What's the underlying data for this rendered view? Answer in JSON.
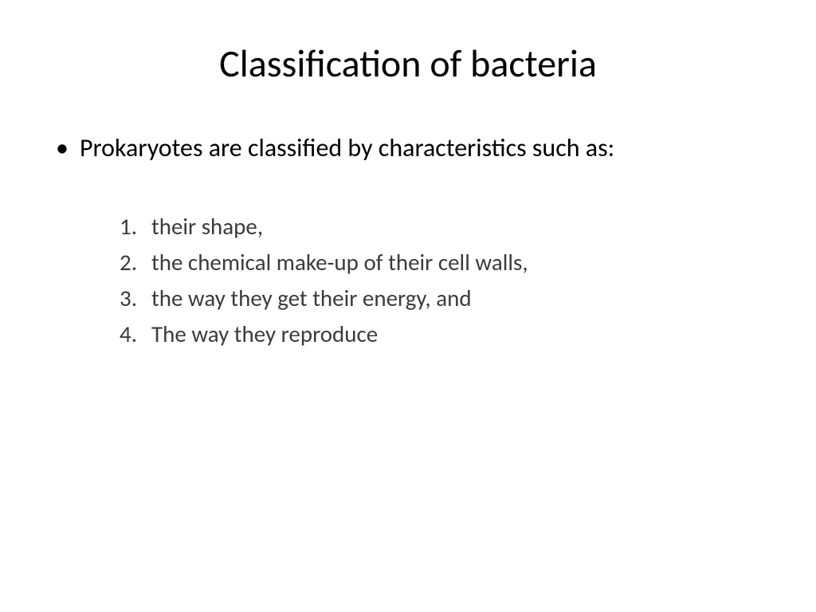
{
  "slide": {
    "title": "Classification of bacteria",
    "intro": "Prokaryotes are classified by characteristics such as:",
    "items": [
      {
        "num": "1.",
        "text": "their shape,"
      },
      {
        "num": "2.",
        "text": "the chemical make-up of their cell walls,"
      },
      {
        "num": "3.",
        "text": "the way they get their energy, and"
      },
      {
        "num": "4.",
        "text": "The way they reproduce"
      }
    ]
  }
}
